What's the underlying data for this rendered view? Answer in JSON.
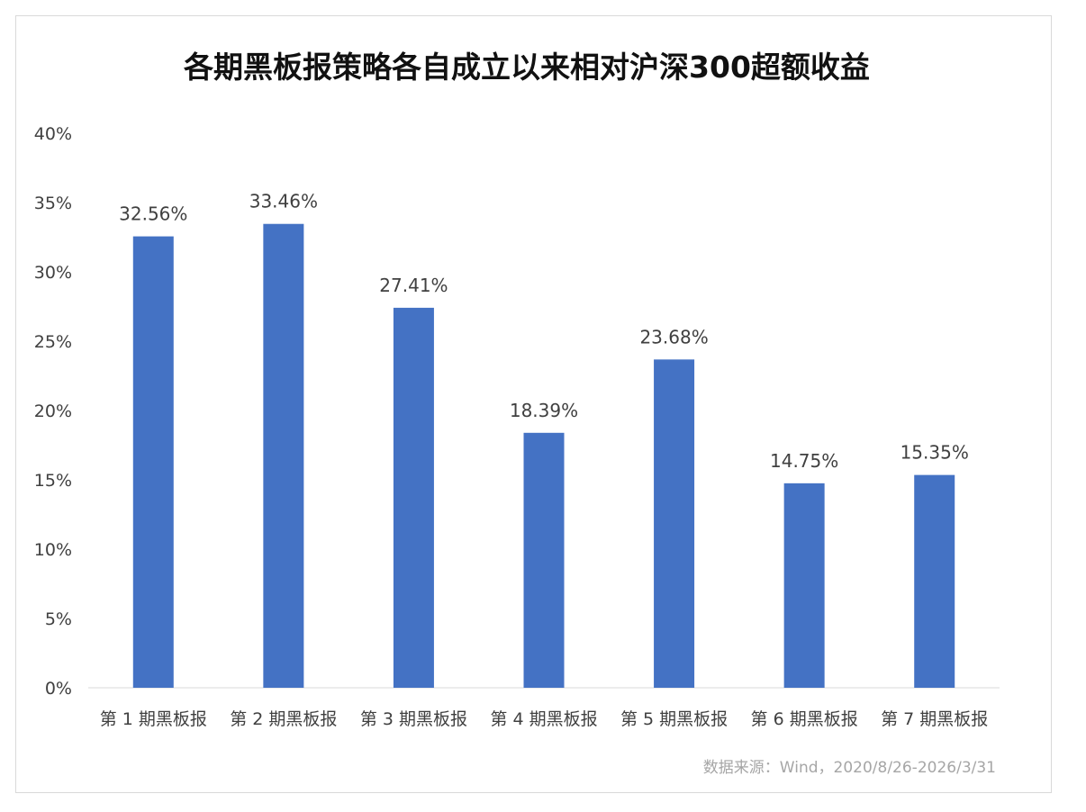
{
  "chart_data": {
    "type": "bar",
    "title": "各期黑板报策略各自成立以来相对沪深300超额收益",
    "categories": [
      "第 1 期黑板报",
      "第 2 期黑板报",
      "第 3 期黑板报",
      "第 4 期黑板报",
      "第 5 期黑板报",
      "第 6 期黑板报",
      "第 7 期黑板报"
    ],
    "values": [
      32.56,
      33.46,
      27.41,
      18.39,
      23.68,
      14.75,
      15.35
    ],
    "data_labels": [
      "32.56%",
      "33.46%",
      "27.41%",
      "18.39%",
      "23.68%",
      "14.75%",
      "15.35%"
    ],
    "yticks": [
      "0%",
      "5%",
      "10%",
      "15%",
      "20%",
      "25%",
      "30%",
      "35%",
      "40%"
    ],
    "ylim": [
      0,
      40
    ],
    "grid": false,
    "bar_color": "#4472c4",
    "source": "数据来源：Wind，2020/8/26-2026/3/31"
  }
}
